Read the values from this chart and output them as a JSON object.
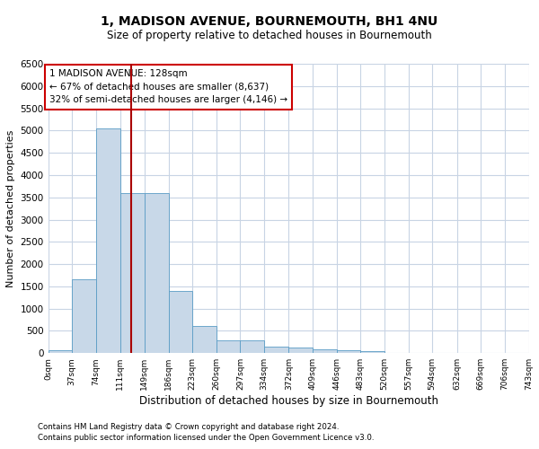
{
  "title": "1, MADISON AVENUE, BOURNEMOUTH, BH1 4NU",
  "subtitle": "Size of property relative to detached houses in Bournemouth",
  "xlabel": "Distribution of detached houses by size in Bournemouth",
  "ylabel": "Number of detached properties",
  "footer1": "Contains HM Land Registry data © Crown copyright and database right 2024.",
  "footer2": "Contains public sector information licensed under the Open Government Licence v3.0.",
  "annotation_line1": "1 MADISON AVENUE: 128sqm",
  "annotation_line2": "← 67% of detached houses are smaller (8,637)",
  "annotation_line3": "32% of semi-detached houses are larger (4,146) →",
  "property_sqm": 128,
  "bar_values": [
    75,
    1650,
    5050,
    3600,
    3600,
    1400,
    620,
    290,
    280,
    145,
    120,
    85,
    65,
    50,
    0,
    0,
    0,
    0,
    0,
    0
  ],
  "bin_edges": [
    0,
    37,
    74,
    111,
    149,
    186,
    223,
    260,
    297,
    334,
    372,
    409,
    446,
    483,
    520,
    557,
    594,
    632,
    669,
    706,
    743
  ],
  "tick_labels": [
    "0sqm",
    "37sqm",
    "74sqm",
    "111sqm",
    "149sqm",
    "186sqm",
    "223sqm",
    "260sqm",
    "297sqm",
    "334sqm",
    "372sqm",
    "409sqm",
    "446sqm",
    "483sqm",
    "520sqm",
    "557sqm",
    "594sqm",
    "632sqm",
    "669sqm",
    "706sqm",
    "743sqm"
  ],
  "bar_color": "#c8d8e8",
  "bar_edge_color": "#5a9cc5",
  "vline_color": "#aa0000",
  "vline_x": 128,
  "grid_color": "#c8d4e4",
  "annotation_box_color": "#cc0000",
  "ylim": [
    0,
    6500
  ],
  "yticks": [
    0,
    500,
    1000,
    1500,
    2000,
    2500,
    3000,
    3500,
    4000,
    4500,
    5000,
    5500,
    6000,
    6500
  ]
}
